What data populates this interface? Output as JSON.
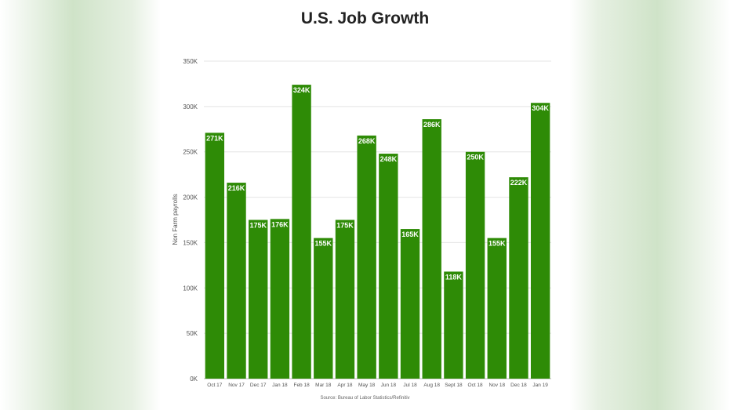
{
  "chart_data": {
    "type": "bar",
    "title": "U.S. Job Growth",
    "xlabel": "",
    "ylabel": "Non Farm payrolls",
    "source": "Source: Bureau of Labor Statistics/Refinitiv",
    "categories": [
      "Oct 17",
      "Nov 17",
      "Dec 17",
      "Jan 18",
      "Feb 18",
      "Mar 18",
      "Apr 18",
      "May 18",
      "Jun 18",
      "Jul 18",
      "Aug 18",
      "Sept 18",
      "Oct 18",
      "Nov 18",
      "Dec 18",
      "Jan 19"
    ],
    "values": [
      271,
      216,
      175,
      176,
      324,
      155,
      175,
      268,
      248,
      165,
      286,
      118,
      250,
      155,
      222,
      304
    ],
    "value_labels": [
      "271K",
      "216K",
      "175K",
      "176K",
      "324K",
      "155K",
      "175K",
      "268K",
      "248K",
      "165K",
      "286K",
      "118K",
      "250K",
      "155K",
      "222K",
      "304K"
    ],
    "yticks": [
      0,
      50,
      100,
      150,
      200,
      250,
      300,
      350
    ],
    "ytick_labels": [
      "0K",
      "50K",
      "100K",
      "150K",
      "200K",
      "250K",
      "300K",
      "350K"
    ],
    "ylim": [
      0,
      350
    ],
    "grid": true,
    "bar_color": "#2e8b06"
  }
}
